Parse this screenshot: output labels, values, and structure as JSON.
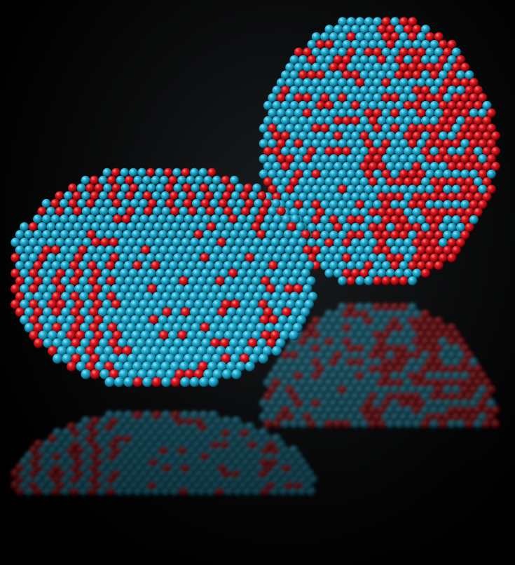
{
  "scene": {
    "background_color": "#000000",
    "atom_colors": {
      "primary": "#1aa3c4",
      "secondary": "#d4101a"
    },
    "objects": [
      {
        "name": "flat-nanoparticle",
        "secondary_fraction": 0.3,
        "seed": 11
      },
      {
        "name": "rounded-nanoparticle",
        "secondary_fraction": 0.48,
        "seed": 29
      }
    ]
  }
}
